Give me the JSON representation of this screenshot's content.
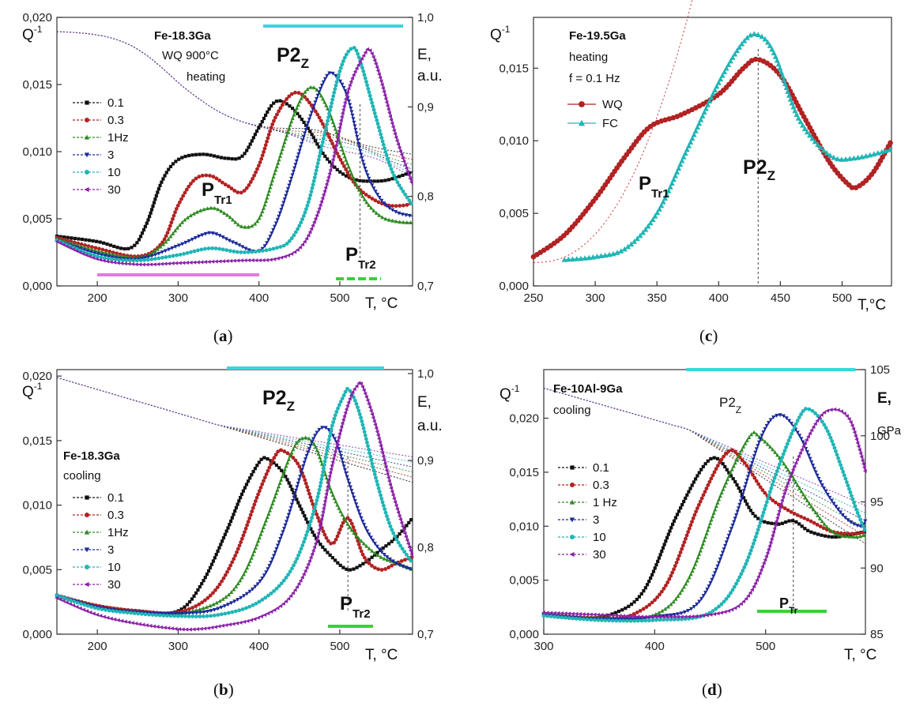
{
  "figure": {
    "panels": [
      {
        "caption": "a",
        "q_label": "Q",
        "q_exp": "-1",
        "e_label_1": "E,",
        "e_label_2": "a.u.",
        "x_label": "T, °C",
        "sample": "Fe-18.3Ga",
        "cond_lines": [
          "WQ 900°C",
          "heating"
        ],
        "peaks": {
          "p2": "P2",
          "p2_sub": "Z",
          "ptr1": "P",
          "ptr1_sub": "Tr1",
          "ptr2": "P",
          "ptr2_sub": "Tr2"
        }
      },
      {
        "caption": "b",
        "q_label": "Q",
        "q_exp": "-1",
        "e_label_1": "E,",
        "e_label_2": "a.u.",
        "x_label": "T, °C",
        "sample": "Fe-18.3Ga",
        "cond_lines": [
          "cooling"
        ],
        "peaks": {
          "p2": "P2",
          "p2_sub": "Z",
          "ptr2": "P",
          "ptr2_sub": "Tr2"
        }
      },
      {
        "caption": "c",
        "q_label": "Q",
        "q_exp": "-1",
        "x_label": "T,°C",
        "sample": "Fe-19.5Ga",
        "cond_lines": [
          "heating",
          "f = 0.1 Hz"
        ],
        "peaks": {
          "p2": "P2",
          "p2_sub": "Z",
          "ptr1": "P",
          "ptr1_sub": "Tr1"
        }
      },
      {
        "caption": "d",
        "q_label": "Q",
        "q_exp": "-1",
        "e_label_1": "E,",
        "e_label_2": "GPa",
        "x_label": "T, °C",
        "sample": "Fe-10Al-9Ga",
        "cond_lines": [
          "cooling"
        ],
        "peaks": {
          "p2": "P2",
          "p2_sub": "Z",
          "ptr": "P",
          "ptr_sub": "Tr"
        }
      }
    ]
  },
  "chart_data": [
    {
      "type": "line",
      "panel": "a",
      "xlim": [
        150,
        590
      ],
      "ylim": [
        0,
        0.02
      ],
      "y2lim": [
        0.7,
        1.0
      ],
      "x_ticks": [
        200,
        300,
        400,
        500
      ],
      "y_ticks": [
        "0,000",
        "0,005",
        "0,010",
        "0,015",
        "0,020"
      ],
      "y2_ticks": [
        "0,7",
        "0,8",
        "0,9",
        "1,0"
      ],
      "legend": [
        "0.1",
        "0.3",
        "1Hz",
        "3",
        "10",
        "30"
      ],
      "series": [
        {
          "name": "0.1",
          "color": "#111111",
          "marker": "square",
          "x": [
            150,
            200,
            240,
            260,
            280,
            300,
            330,
            360,
            380,
            400,
            420,
            440,
            460,
            480,
            500,
            520,
            540,
            560,
            590
          ],
          "y": [
            0.0037,
            0.0033,
            0.0028,
            0.0045,
            0.0078,
            0.0094,
            0.0098,
            0.0095,
            0.0097,
            0.0118,
            0.0137,
            0.0133,
            0.0118,
            0.0098,
            0.0085,
            0.0079,
            0.0078,
            0.0079,
            0.0085
          ]
        },
        {
          "name": "0.3",
          "color": "#b22222",
          "marker": "circle",
          "x": [
            150,
            200,
            250,
            280,
            300,
            320,
            340,
            360,
            380,
            400,
            420,
            445,
            470,
            500,
            520,
            540,
            560,
            580,
            590
          ],
          "y": [
            0.0036,
            0.0028,
            0.0022,
            0.0032,
            0.006,
            0.0079,
            0.0082,
            0.0075,
            0.007,
            0.009,
            0.0125,
            0.0144,
            0.013,
            0.0095,
            0.0075,
            0.0065,
            0.006,
            0.006,
            0.0062
          ]
        },
        {
          "name": "1Hz",
          "color": "#2e8b22",
          "marker": "triangle",
          "x": [
            150,
            200,
            250,
            280,
            310,
            340,
            360,
            380,
            400,
            420,
            445,
            465,
            485,
            510,
            530,
            550,
            570,
            590
          ],
          "y": [
            0.0035,
            0.0026,
            0.0021,
            0.003,
            0.005,
            0.0058,
            0.0053,
            0.0044,
            0.005,
            0.0085,
            0.013,
            0.0148,
            0.0132,
            0.009,
            0.0065,
            0.0052,
            0.0048,
            0.0047
          ]
        },
        {
          "name": "3",
          "color": "#1c2a9a",
          "marker": "triangle-down",
          "x": [
            150,
            200,
            250,
            300,
            330,
            345,
            370,
            400,
            420,
            440,
            460,
            480,
            492,
            510,
            530,
            550,
            570,
            590
          ],
          "y": [
            0.0034,
            0.0024,
            0.002,
            0.003,
            0.0038,
            0.0039,
            0.0032,
            0.0026,
            0.0045,
            0.008,
            0.012,
            0.0152,
            0.0158,
            0.014,
            0.009,
            0.0065,
            0.0055,
            0.0052
          ]
        },
        {
          "name": "10",
          "color": "#20b5b5",
          "marker": "circle",
          "x": [
            150,
            200,
            250,
            300,
            340,
            380,
            420,
            440,
            460,
            480,
            500,
            515,
            525,
            545,
            565,
            590
          ],
          "y": [
            0.0034,
            0.0022,
            0.0019,
            0.0023,
            0.0028,
            0.0025,
            0.0028,
            0.0035,
            0.006,
            0.011,
            0.016,
            0.0177,
            0.0168,
            0.0125,
            0.0085,
            0.006
          ]
        },
        {
          "name": "30",
          "color": "#8b22a8",
          "marker": "triangle-left",
          "x": [
            150,
            200,
            250,
            300,
            340,
            380,
            420,
            450,
            470,
            490,
            510,
            530,
            538,
            550,
            570,
            590
          ],
          "y": [
            0.0033,
            0.002,
            0.0016,
            0.0017,
            0.0018,
            0.0019,
            0.002,
            0.0028,
            0.005,
            0.009,
            0.0145,
            0.0172,
            0.0175,
            0.0155,
            0.011,
            0.0075
          ]
        }
      ]
    },
    {
      "type": "line",
      "panel": "b",
      "xlim": [
        150,
        590
      ],
      "ylim": [
        0,
        0.0205
      ],
      "y2lim": [
        0.7,
        1.0
      ],
      "x_ticks": [
        200,
        300,
        400,
        500
      ],
      "y_ticks": [
        "0,000",
        "0,005",
        "0,010",
        "0,015",
        "0,020"
      ],
      "y2_ticks": [
        "0,7",
        "0,8",
        "0,9",
        "1,0"
      ],
      "legend": [
        "0.1",
        "0.3",
        "1Hz",
        "3",
        "10",
        "30"
      ],
      "series": [
        {
          "name": "0.1",
          "color": "#111111",
          "marker": "square",
          "x": [
            150,
            200,
            250,
            300,
            330,
            360,
            380,
            400,
            410,
            430,
            450,
            470,
            490,
            510,
            530,
            550,
            570,
            590
          ],
          "y": [
            0.003,
            0.0022,
            0.0018,
            0.0018,
            0.004,
            0.008,
            0.011,
            0.0133,
            0.0136,
            0.0125,
            0.01,
            0.0075,
            0.006,
            0.005,
            0.0055,
            0.0065,
            0.0075,
            0.009
          ]
        },
        {
          "name": "0.3",
          "color": "#b22222",
          "marker": "circle",
          "x": [
            150,
            200,
            250,
            300,
            340,
            370,
            400,
            420,
            430,
            450,
            470,
            490,
            510,
            530,
            550,
            570,
            590
          ],
          "y": [
            0.003,
            0.0022,
            0.0018,
            0.0017,
            0.003,
            0.006,
            0.011,
            0.0138,
            0.0142,
            0.013,
            0.0095,
            0.007,
            0.009,
            0.006,
            0.005,
            0.0055,
            0.006
          ]
        },
        {
          "name": "1Hz",
          "color": "#2e8b22",
          "marker": "triangle",
          "x": [
            150,
            200,
            250,
            300,
            350,
            380,
            410,
            440,
            455,
            470,
            490,
            510,
            530,
            550,
            570,
            590
          ],
          "y": [
            0.003,
            0.0021,
            0.0017,
            0.0016,
            0.0025,
            0.0045,
            0.009,
            0.014,
            0.0152,
            0.0145,
            0.011,
            0.0085,
            0.007,
            0.006,
            0.0055,
            0.005
          ]
        },
        {
          "name": "3",
          "color": "#1c2a9a",
          "marker": "triangle-down",
          "x": [
            150,
            200,
            250,
            300,
            350,
            400,
            430,
            460,
            478,
            495,
            510,
            530,
            550,
            570,
            590
          ],
          "y": [
            0.003,
            0.0021,
            0.0017,
            0.0016,
            0.002,
            0.004,
            0.008,
            0.014,
            0.016,
            0.015,
            0.012,
            0.0085,
            0.0065,
            0.0055,
            0.005
          ]
        },
        {
          "name": "10",
          "color": "#20b5b5",
          "marker": "circle",
          "x": [
            150,
            200,
            250,
            300,
            350,
            400,
            440,
            470,
            490,
            505,
            512,
            525,
            545,
            565,
            590
          ],
          "y": [
            0.003,
            0.002,
            0.0016,
            0.0014,
            0.0015,
            0.0025,
            0.005,
            0.01,
            0.016,
            0.0185,
            0.0189,
            0.017,
            0.012,
            0.008,
            0.0055
          ]
        },
        {
          "name": "30",
          "color": "#8b22a8",
          "marker": "triangle-left",
          "x": [
            150,
            200,
            250,
            300,
            325,
            350,
            400,
            440,
            470,
            490,
            510,
            522,
            528,
            545,
            565,
            590
          ],
          "y": [
            0.0028,
            0.0015,
            0.0008,
            0.0004,
            0.0004,
            0.0006,
            0.0013,
            0.003,
            0.007,
            0.013,
            0.0178,
            0.0193,
            0.0192,
            0.016,
            0.011,
            0.006
          ]
        }
      ]
    },
    {
      "type": "line",
      "panel": "c",
      "xlim": [
        250,
        540
      ],
      "ylim": [
        0,
        0.0185
      ],
      "x_ticks": [
        250,
        300,
        350,
        400,
        450,
        500
      ],
      "y_ticks": [
        "0,000",
        "0,005",
        "0,010",
        "0,015"
      ],
      "legend": [
        "WQ",
        "FC"
      ],
      "series": [
        {
          "name": "WQ",
          "color": "#b22222",
          "marker": "circle",
          "x": [
            250,
            275,
            300,
            325,
            345,
            370,
            400,
            420,
            432,
            450,
            470,
            490,
            505,
            512,
            525,
            540
          ],
          "y": [
            0.002,
            0.0035,
            0.006,
            0.009,
            0.011,
            0.0118,
            0.0132,
            0.015,
            0.0156,
            0.0145,
            0.0115,
            0.0085,
            0.007,
            0.0068,
            0.0078,
            0.01
          ]
        },
        {
          "name": "FC",
          "color": "#20b5b5",
          "marker": "triangle",
          "x": [
            275,
            300,
            325,
            350,
            375,
            400,
            420,
            432,
            445,
            465,
            490,
            510,
            540
          ],
          "y": [
            0.0018,
            0.002,
            0.0026,
            0.005,
            0.0095,
            0.014,
            0.0168,
            0.0173,
            0.016,
            0.0115,
            0.009,
            0.0088,
            0.0094
          ]
        }
      ]
    },
    {
      "type": "line",
      "panel": "d",
      "xlim": [
        300,
        590
      ],
      "ylim": [
        0,
        0.0245
      ],
      "y2lim": [
        85,
        105
      ],
      "x_ticks": [
        300,
        400,
        500
      ],
      "y_ticks": [
        "0,000",
        "0,005",
        "0,010",
        "0,015",
        "0,020"
      ],
      "y2_ticks": [
        "85",
        "90",
        "95",
        "100",
        "105"
      ],
      "legend": [
        "0.1",
        "0.3",
        "1 Hz",
        "3",
        "10",
        "30"
      ],
      "series": [
        {
          "name": "0.1",
          "color": "#111111",
          "marker": "square",
          "x": [
            300,
            330,
            360,
            390,
            420,
            450,
            470,
            490,
            510,
            525,
            540,
            560,
            575,
            590
          ],
          "y": [
            0.0018,
            0.0015,
            0.0018,
            0.004,
            0.011,
            0.0162,
            0.0145,
            0.011,
            0.0102,
            0.0105,
            0.0095,
            0.009,
            0.0092,
            0.0095
          ]
        },
        {
          "name": "0.3",
          "color": "#b22222",
          "marker": "circle",
          "x": [
            300,
            350,
            380,
            410,
            440,
            465,
            480,
            500,
            520,
            540,
            560,
            580,
            590
          ],
          "y": [
            0.0018,
            0.0015,
            0.0018,
            0.0045,
            0.012,
            0.0168,
            0.016,
            0.013,
            0.0115,
            0.0105,
            0.0095,
            0.0093,
            0.0095
          ]
        },
        {
          "name": "1 Hz",
          "color": "#2e8b22",
          "marker": "triangle",
          "x": [
            300,
            350,
            400,
            430,
            460,
            485,
            495,
            515,
            540,
            560,
            580,
            590
          ],
          "y": [
            0.0018,
            0.0015,
            0.0018,
            0.005,
            0.013,
            0.0182,
            0.0182,
            0.016,
            0.012,
            0.0095,
            0.009,
            0.0092
          ]
        },
        {
          "name": "3",
          "color": "#1c2a9a",
          "marker": "triangle-down",
          "x": [
            300,
            350,
            400,
            440,
            470,
            495,
            512,
            530,
            550,
            570,
            585,
            590
          ],
          "y": [
            0.0018,
            0.0014,
            0.0016,
            0.003,
            0.01,
            0.018,
            0.0203,
            0.0185,
            0.014,
            0.011,
            0.01,
            0.0105
          ]
        },
        {
          "name": "10",
          "color": "#20b5b5",
          "marker": "circle",
          "x": [
            300,
            350,
            400,
            450,
            480,
            510,
            530,
            540,
            555,
            570,
            582,
            590
          ],
          "y": [
            0.0017,
            0.0013,
            0.0013,
            0.002,
            0.006,
            0.015,
            0.02,
            0.0208,
            0.019,
            0.015,
            0.0115,
            0.0095
          ]
        },
        {
          "name": "30",
          "color": "#8b22a8",
          "marker": "triangle-left",
          "x": [
            300,
            350,
            400,
            450,
            480,
            500,
            520,
            545,
            560,
            575,
            585,
            590
          ],
          "y": [
            0.002,
            0.0018,
            0.0016,
            0.0018,
            0.003,
            0.007,
            0.014,
            0.0195,
            0.0208,
            0.02,
            0.017,
            0.015
          ]
        }
      ]
    }
  ]
}
